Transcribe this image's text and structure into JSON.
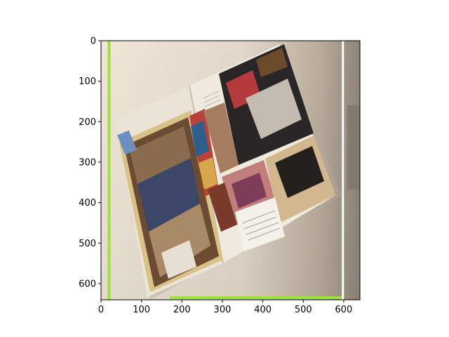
{
  "chart_data": {
    "type": "image",
    "image_description": "photo of an open fashion magazine lying diagonally on a beige surface, shown via imshow",
    "xlim": [
      0,
      640
    ],
    "ylim": [
      640,
      0
    ],
    "x_ticks": [
      0,
      100,
      200,
      300,
      400,
      500,
      600
    ],
    "y_ticks": [
      0,
      100,
      200,
      300,
      400,
      500,
      600
    ],
    "x_tick_labels": [
      "0",
      "100",
      "200",
      "300",
      "400",
      "500",
      "600"
    ],
    "y_tick_labels": [
      "0",
      "100",
      "200",
      "300",
      "400",
      "500",
      "600"
    ],
    "title": "",
    "xlabel": "",
    "ylabel": "",
    "grid": false,
    "overlay_lines": [
      {
        "name": "left-vertical-green",
        "color": "#9be33a",
        "x": 20,
        "y": [
          0,
          640
        ]
      },
      {
        "name": "bottom-horizontal-green",
        "color": "#9be33a",
        "y": 635,
        "x": [
          170,
          600
        ]
      },
      {
        "name": "right-vertical-white",
        "color": "#ffffff",
        "x": 598,
        "y": [
          0,
          640
        ]
      }
    ],
    "colors": {
      "background_surface": "#d8ccbd",
      "magazine_paper": "#ece6da",
      "accent_green": "#9be33a"
    }
  }
}
